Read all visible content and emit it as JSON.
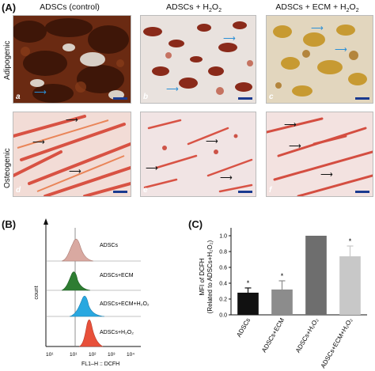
{
  "figure": {
    "panel_a": "(A)",
    "panel_b": "(B)",
    "panel_c": "(C)",
    "col_titles": [
      "ADSCs (control)",
      "ADSCs + H",
      "ADSCs + ECM + H"
    ],
    "col_title_sub": "2",
    "col_title_tail": "O",
    "row_titles": [
      "Adipogenic",
      "Osteogenic"
    ],
    "tile_letters": [
      "a",
      "b",
      "c",
      "d",
      "e",
      "f"
    ],
    "colors": {
      "adipo_bg": "#d8cfc6",
      "adipo_dense": "#5a2410",
      "adipo_mid": "#8a3d1a",
      "adipo_light": "#c9a24a",
      "osteo_bg": "#f3dede",
      "osteo_red": "#d43a2a",
      "arrow_blue": "#2a8fd6"
    }
  },
  "flow": {
    "ylabel": "count",
    "xlabel": "FL1–H :: DCFH",
    "tick_labels": [
      "10¹",
      "10¹",
      "10²",
      "10³",
      "10⁴"
    ],
    "rows": [
      {
        "label": "ADSCs",
        "color": "#d9a9a1"
      },
      {
        "label": "ADSCs+ECM",
        "color": "#2e7d32"
      },
      {
        "label": "ADSCs+ECM+H₂O₂",
        "color": "#29a8e0"
      },
      {
        "label": "ADSCs+H₂O₂",
        "color": "#e8503a"
      }
    ]
  },
  "chart_data": {
    "type": "bar",
    "categories": [
      "ADSCs",
      "ADSCs+ECM",
      "ADSCs+H₂O₂",
      "ADSCs+ECM+H₂O₂"
    ],
    "values": [
      0.28,
      0.32,
      1.0,
      0.74
    ],
    "errors": [
      0.06,
      0.11,
      0.0,
      0.13
    ],
    "significance": [
      "*",
      "*",
      "",
      "*"
    ],
    "colors": [
      "#111111",
      "#8c8c8c",
      "#6e6e6e",
      "#c8c8c8"
    ],
    "ylabel_line1": "MFI of DCFH",
    "ylabel_line2": "(Related to ADSCs+H₂O₂)",
    "ylim": [
      0,
      1.1
    ],
    "yticks": [
      0.0,
      0.2,
      0.4,
      0.6,
      0.8,
      1.0
    ],
    "ytick_labels": [
      "0.0",
      "0.2",
      "0.4",
      "0.6",
      "0.8",
      "1.0"
    ]
  }
}
